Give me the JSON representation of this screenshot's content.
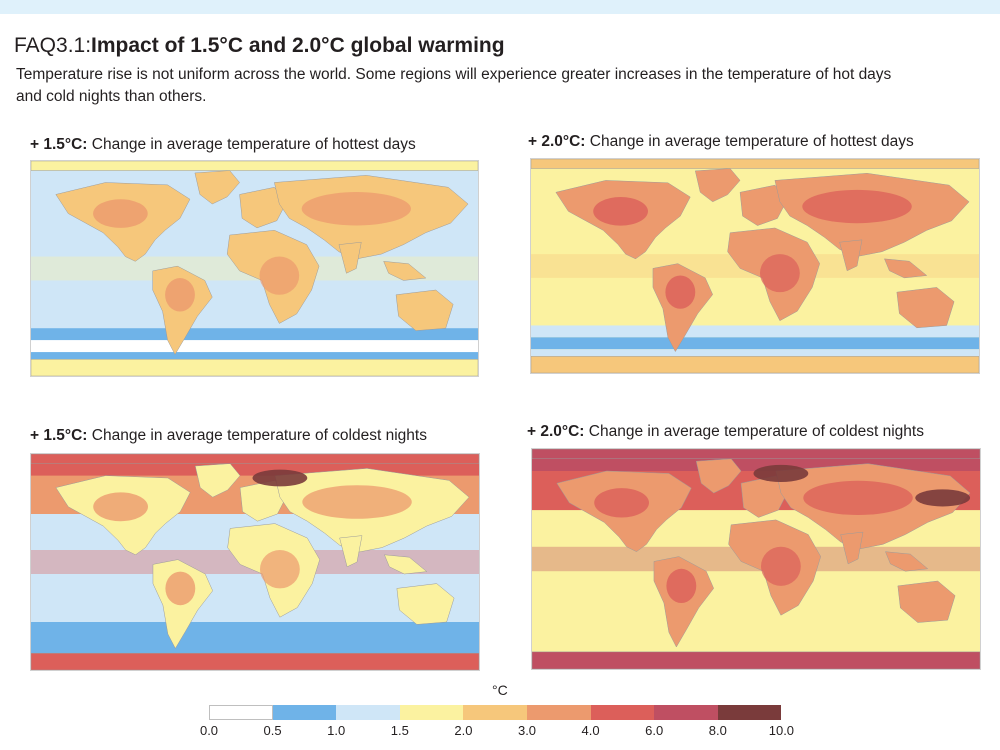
{
  "header": {
    "title_prefix": "FAQ3.1:",
    "title_main": "Impact of 1.5°C and 2.0°C global warming",
    "subtitle": "Temperature rise is not uniform across the world. Some regions will experience greater increases in the temperature of hot days and cold nights than others."
  },
  "panels": [
    {
      "prefix": "+ 1.5°C:",
      "label": "Change in average temperature of hottest days",
      "intensity": 0.0
    },
    {
      "prefix": "+ 2.0°C:",
      "label": "Change in average temperature of hottest days",
      "intensity": 1.0
    },
    {
      "prefix": "+ 1.5°C:",
      "label": "Change in average temperature of coldest nights",
      "intensity": 0.0
    },
    {
      "prefix": "+ 2.0°C:",
      "label": "Change in average temperature of coldest nights",
      "intensity": 1.0
    }
  ],
  "legend": {
    "unit": "°C",
    "ticks": [
      "0.0",
      "0.5",
      "1.0",
      "1.5",
      "2.0",
      "3.0",
      "4.0",
      "6.0",
      "8.0",
      "10.0"
    ],
    "colors": [
      "#ffffff",
      "#6fb3e8",
      "#cfe6f7",
      "#fbf2a0",
      "#f6c77b",
      "#ec9a6e",
      "#dc5f5a",
      "#bf4f62",
      "#7a3b3b"
    ]
  }
}
